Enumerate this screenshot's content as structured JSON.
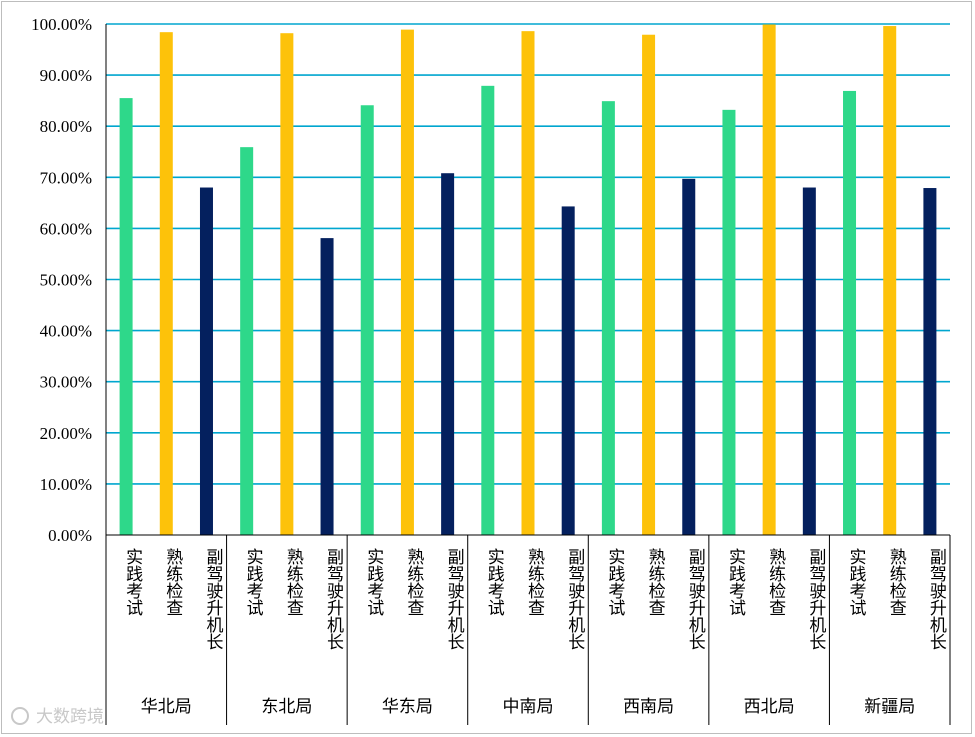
{
  "chart_data": {
    "type": "bar",
    "title": "",
    "xlabel": "",
    "ylabel": "",
    "ylim": [
      0,
      100
    ],
    "y_ticks": [
      "0.00%",
      "10.00%",
      "20.00%",
      "30.00%",
      "40.00%",
      "50.00%",
      "60.00%",
      "70.00%",
      "80.00%",
      "90.00%",
      "100.00%"
    ],
    "grid": true,
    "legend": "none",
    "groups": [
      "华北局",
      "东北局",
      "华东局",
      "中南局",
      "西南局",
      "西北局",
      "新疆局"
    ],
    "categories": [
      "实践考试",
      "熟练检查",
      "副驾驶升机长"
    ],
    "colors": [
      "#2ed88a",
      "#fdc20a",
      "#04205e"
    ],
    "values": [
      [
        85.5,
        98.4,
        68.0
      ],
      [
        75.9,
        98.2,
        58.1
      ],
      [
        84.1,
        98.9,
        70.8
      ],
      [
        87.9,
        98.6,
        64.3
      ],
      [
        84.9,
        97.9,
        69.7
      ],
      [
        83.2,
        99.9,
        68.0
      ],
      [
        86.9,
        99.6,
        67.9
      ]
    ]
  },
  "watermark": "大数跨境"
}
